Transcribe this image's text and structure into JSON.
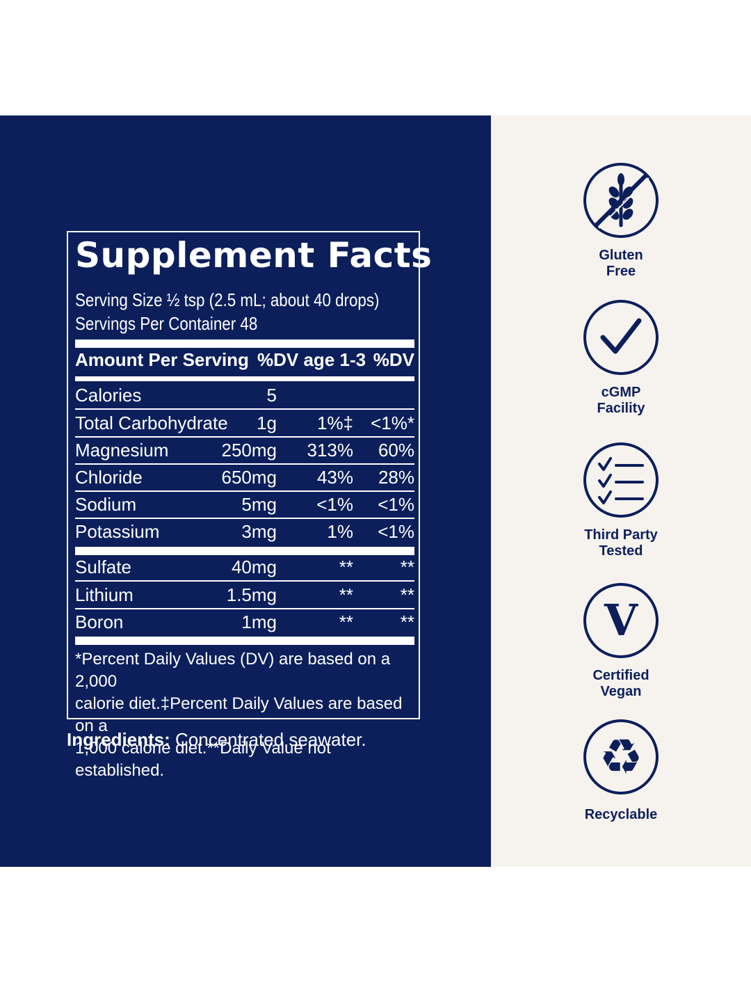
{
  "facts": {
    "title": "Supplement Facts",
    "serving_size": "Serving Size ½ tsp (2.5 mL; about 40 drops)",
    "servings_per_container": "Servings Per Container 48",
    "header": {
      "amount": "Amount Per Serving",
      "dv_age": "%DV age 1-3",
      "dv": "%DV"
    },
    "rows": [
      {
        "name": "Calories",
        "amount": "5",
        "dv_age": "",
        "dv": ""
      },
      {
        "name": "Total Carbohydrate",
        "amount": "1g",
        "dv_age": "1%‡",
        "dv": "<1%*"
      },
      {
        "name": "Magnesium",
        "amount": "250mg",
        "dv_age": "313%",
        "dv": "60%"
      },
      {
        "name": "Chloride",
        "amount": "650mg",
        "dv_age": "43%",
        "dv": "28%"
      },
      {
        "name": "Sodium",
        "amount": "5mg",
        "dv_age": "<1%",
        "dv": "<1%"
      },
      {
        "name": "Potassium",
        "amount": "3mg",
        "dv_age": "1%",
        "dv": "<1%"
      }
    ],
    "rows2": [
      {
        "name": "Sulfate",
        "amount": "40mg",
        "dv_age": "**",
        "dv": "**"
      },
      {
        "name": "Lithium",
        "amount": "1.5mg",
        "dv_age": "**",
        "dv": "**"
      },
      {
        "name": "Boron",
        "amount": "1mg",
        "dv_age": "**",
        "dv": "**"
      }
    ],
    "footnote_lines": [
      "*Percent Daily Values (DV) are based on a 2,000",
      "calorie diet.‡Percent Daily Values are based on a",
      "1,000 calorie diet.**Daily Value not established."
    ]
  },
  "ingredients": {
    "label": "Ingredients:",
    "text": " Concentrated seawater."
  },
  "badges": [
    {
      "icon": "gluten-free-icon",
      "line1": "Gluten",
      "line2": "Free"
    },
    {
      "icon": "checkmark-icon",
      "line1": "cGMP",
      "line2": "Facility"
    },
    {
      "icon": "checklist-icon",
      "line1": "Third Party",
      "line2": "Tested"
    },
    {
      "icon": "vegan-v-icon",
      "line1": "Certified",
      "line2": "Vegan"
    },
    {
      "icon": "recycle-icon",
      "line1": "Recyclable",
      "line2": ""
    }
  ],
  "colors": {
    "navy": "#0c1f5b",
    "cream": "#f6f2ee",
    "white": "#ffffff"
  }
}
